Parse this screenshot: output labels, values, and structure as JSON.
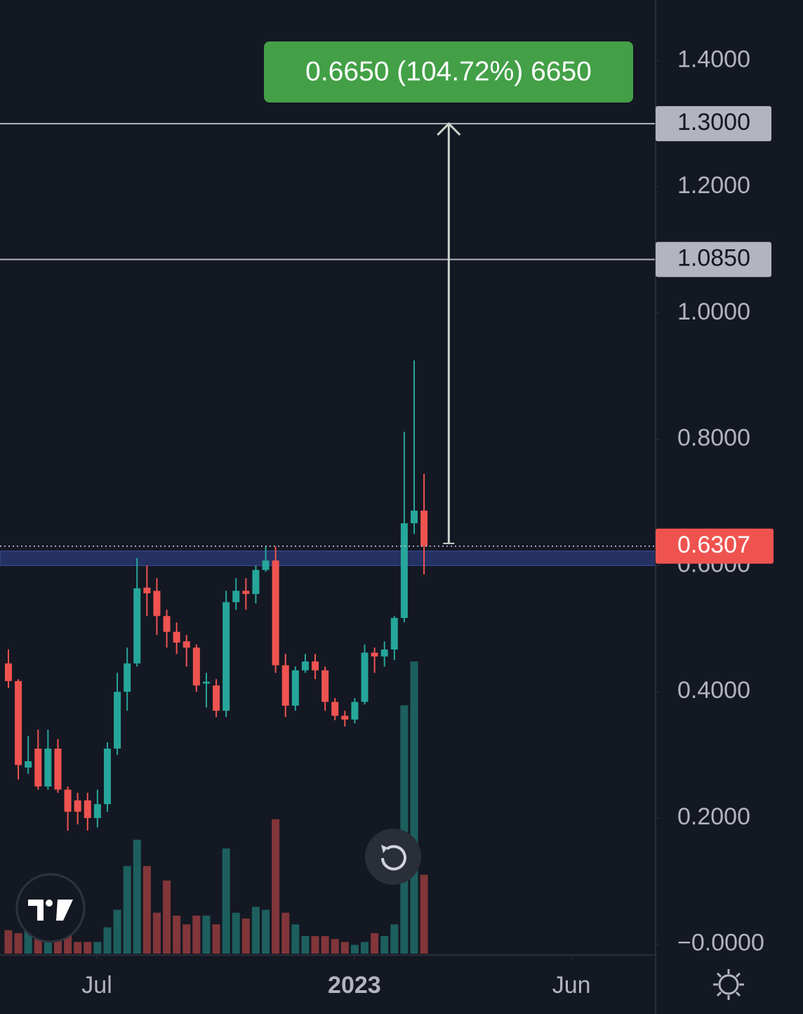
{
  "chart_data": {
    "type": "candlestick",
    "open": [
      0.445,
      0.417,
      0.28,
      0.31,
      0.25,
      0.31,
      0.245,
      0.228,
      0.228,
      0.2,
      0.222,
      0.31,
      0.4,
      0.445,
      0.565,
      0.56,
      0.52,
      0.495,
      0.48,
      0.47,
      0.413,
      0.41,
      0.37,
      0.542,
      0.56,
      0.555,
      0.593,
      0.608,
      0.442,
      0.378,
      0.434,
      0.448,
      0.434,
      0.384,
      0.362,
      0.356,
      0.384,
      0.462,
      0.456,
      0.467,
      0.517,
      0.667,
      0.687
    ],
    "high": [
      0.467,
      0.42,
      0.33,
      0.34,
      0.34,
      0.325,
      0.25,
      0.24,
      0.24,
      0.245,
      0.32,
      0.43,
      0.47,
      0.612,
      0.6,
      0.58,
      0.53,
      0.51,
      0.49,
      0.475,
      0.43,
      0.42,
      0.56,
      0.58,
      0.58,
      0.6,
      0.63,
      0.63,
      0.46,
      0.44,
      0.46,
      0.46,
      0.44,
      0.39,
      0.37,
      0.39,
      0.475,
      0.47,
      0.48,
      0.52,
      0.812,
      0.925,
      0.745
    ],
    "low": [
      0.406,
      0.261,
      0.27,
      0.245,
      0.245,
      0.24,
      0.18,
      0.19,
      0.18,
      0.185,
      0.21,
      0.3,
      0.37,
      0.44,
      0.52,
      0.49,
      0.47,
      0.46,
      0.44,
      0.4,
      0.375,
      0.36,
      0.36,
      0.53,
      0.53,
      0.54,
      0.59,
      0.43,
      0.36,
      0.37,
      0.43,
      0.42,
      0.37,
      0.355,
      0.345,
      0.35,
      0.38,
      0.43,
      0.44,
      0.45,
      0.51,
      0.65,
      0.586
    ],
    "close": [
      0.417,
      0.284,
      0.29,
      0.25,
      0.31,
      0.245,
      0.21,
      0.21,
      0.2,
      0.222,
      0.31,
      0.4,
      0.445,
      0.564,
      0.556,
      0.52,
      0.495,
      0.478,
      0.47,
      0.41,
      0.416,
      0.37,
      0.542,
      0.56,
      0.555,
      0.593,
      0.608,
      0.442,
      0.378,
      0.434,
      0.448,
      0.434,
      0.384,
      0.362,
      0.356,
      0.384,
      0.462,
      0.456,
      0.467,
      0.517,
      0.667,
      0.687,
      0.6307
    ],
    "volume": [
      8,
      7,
      8,
      6,
      8,
      8,
      9,
      4,
      4,
      4,
      9,
      15,
      30,
      39,
      30,
      14,
      25,
      13,
      10,
      13,
      13,
      10,
      36,
      14,
      12,
      16,
      15,
      46,
      14,
      10,
      6,
      6,
      6,
      5,
      4,
      3,
      4,
      7,
      6,
      10,
      85,
      100,
      27
    ],
    "vlim": [
      0,
      100
    ],
    "xlim": [
      -0.85,
      65.4
    ],
    "ylim": [
      -0.017,
      1.496
    ],
    "yticks": [
      {
        "value": 1.4,
        "label": "1.4000"
      },
      {
        "value": 1.2,
        "label": "1.2000"
      },
      {
        "value": 1.0,
        "label": "1.0000"
      },
      {
        "value": 0.8,
        "label": "0.8000"
      },
      {
        "value": 0.6,
        "label": "0.6000"
      },
      {
        "value": 0.4,
        "label": "0.4000"
      },
      {
        "value": 0.2,
        "label": "0.2000"
      },
      {
        "value": 0,
        "label": "−0.0000"
      }
    ],
    "xticks": [
      {
        "value": 8.94,
        "label": "Jul"
      },
      {
        "value": 34.96,
        "label": "2023"
      },
      {
        "value": 56.9,
        "label": "Jun"
      }
    ],
    "levels": [
      {
        "value": 1.3,
        "label": "1.3000"
      },
      {
        "value": 1.085,
        "label": "1.0850"
      }
    ],
    "last_price": {
      "value": 0.6307,
      "label": "0.6307"
    },
    "zone": [
      0.6,
      0.623
    ],
    "measure": {
      "at": 44.5,
      "from": 0.635,
      "to": 1.3,
      "label": "0.6650 (104.72%) 6650"
    },
    "colors": {
      "up": "#26a69a",
      "down": "#ef5350"
    }
  }
}
